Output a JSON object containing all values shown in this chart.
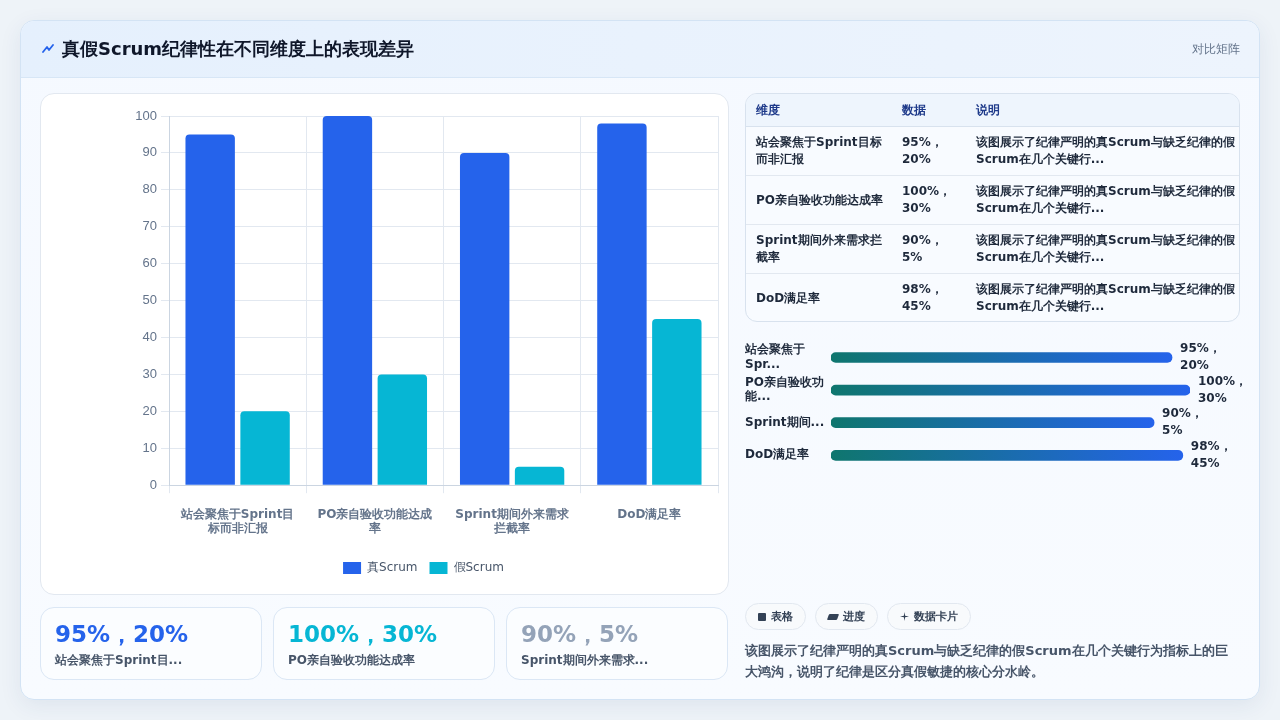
{
  "chart_data": [
    {
      "type": "other",
      "title": "真假Scrum纪律性在不同维度上的表现差异",
      "subtitle": "对比矩阵"
    },
    {
      "type": "bar",
      "categories": [
        "站会聚焦于Sprint目标而非汇报",
        "PO亲自验收功能达成率",
        "Sprint期间外来需求拦截率",
        "DoD满足率"
      ],
      "series": [
        {
          "name": "真Scrum",
          "color": "#2563eb",
          "values": [
            95,
            100,
            90,
            98
          ]
        },
        {
          "name": "假Scrum",
          "color": "#06b6d4",
          "values": [
            20,
            30,
            5,
            45
          ]
        }
      ],
      "ylim": [
        0,
        100
      ],
      "yticks": [
        0,
        10,
        20,
        30,
        40,
        50,
        60,
        70,
        80,
        90,
        100
      ],
      "grid": true,
      "legend": "bottom"
    },
    {
      "type": "other",
      "categories": [
        "维度",
        "数据",
        "说明"
      ],
      "y_categories": [
        "站会聚焦于Sprint目标而非汇报",
        "PO亲自验收功能达成率",
        "Sprint期间外来需求拦截率",
        "DoD满足率"
      ],
      "cell_labels": [
        [
          "95%，20%",
          "该图展示了纪律严明的真Scrum与缺乏纪律的假Scrum在几个关键行..."
        ],
        [
          "100%，30%",
          "该图展示了纪律严明的真Scrum与缺乏纪律的假Scrum在几个关键行..."
        ],
        [
          "90%，5%",
          "该图展示了纪律严明的真Scrum与缺乏纪律的假Scrum在几个关键行..."
        ],
        [
          "98%，45%",
          "该图展示了纪律严明的真Scrum与缺乏纪律的假Scrum在几个关键行..."
        ]
      ]
    },
    {
      "type": "bar",
      "orientation": "horizontal",
      "categories": [
        "站会聚焦于Spr...",
        "PO亲自验收功能...",
        "Sprint期间...",
        "DoD满足率"
      ],
      "values": [
        95,
        100,
        90,
        98
      ],
      "value_labels": [
        "95%，20%",
        "100%，30%",
        "90%，5%",
        "98%，45%"
      ],
      "color": "#2563eb",
      "tick_labels": "y"
    },
    {
      "type": "other",
      "categories": [
        "95%，20%",
        "100%，30%",
        "90%，5%"
      ],
      "annotations": [
        "站会聚焦于Sprint目...",
        "PO亲自验收功能达成率",
        "Sprint期间外来需求..."
      ]
    },
    {
      "type": "other",
      "categories": [
        "表格",
        "进度",
        "数据卡片"
      ],
      "annotations": [
        "该图展示了纪律严明的真Scrum与缺乏纪律的假Scrum在几个关键行为指标上的巨大鸿沟，说明了纪律是区分真假敏捷的核心分水岭。"
      ]
    }
  ]
}
